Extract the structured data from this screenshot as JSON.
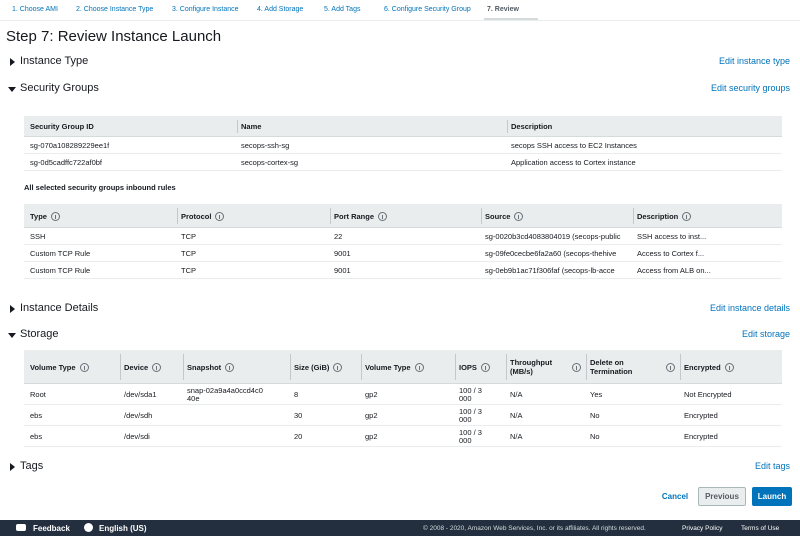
{
  "steps": [
    "1. Choose AMI",
    "2. Choose Instance Type",
    "3. Configure Instance",
    "4. Add Storage",
    "5. Add Tags",
    "6. Configure Security Group",
    "7. Review"
  ],
  "title": "Step 7: Review Instance Launch",
  "sections": {
    "instance_type": {
      "label": "Instance Type",
      "edit": "Edit instance type"
    },
    "security_groups": {
      "label": "Security Groups",
      "edit": "Edit security groups",
      "groups": {
        "headers": [
          "Security Group ID",
          "Name",
          "Description"
        ],
        "rows": [
          [
            "sg-070a108289229ee1f",
            "secops-ssh-sg",
            "secops SSH access to EC2 Instances"
          ],
          [
            "sg-0d5cadffc722af0bf",
            "secops-cortex-sg",
            "Application access to Cortex instance"
          ]
        ]
      },
      "rules_title": "All selected security groups inbound rules",
      "rules": {
        "headers": [
          "Type",
          "Protocol",
          "Port Range",
          "Source",
          "Description"
        ],
        "rows": [
          [
            "SSH",
            "TCP",
            "22",
            "sg-0020b3cd4083804019 (secops-public",
            "SSH access to inst..."
          ],
          [
            "Custom TCP Rule",
            "TCP",
            "9001",
            "sg-09fe0cecbe6fa2a60 (secops-thehive",
            "Access to Cortex f..."
          ],
          [
            "Custom TCP Rule",
            "TCP",
            "9001",
            "sg-0eb9b1ac71f306faf (secops-lb-acce",
            "Access from ALB on..."
          ]
        ]
      }
    },
    "instance_details": {
      "label": "Instance Details",
      "edit": "Edit instance details"
    },
    "storage": {
      "label": "Storage",
      "edit": "Edit storage",
      "volumes": {
        "headers": [
          "Volume Type",
          "Device",
          "Snapshot",
          "Size (GiB)",
          "Volume Type",
          "IOPS",
          "Throughput (MB/s)",
          "Delete on Termination",
          "Encrypted"
        ],
        "rows": [
          [
            "Root",
            "/dev/sda1",
            "snap-02a9a4a0ccd4c040e",
            "8",
            "gp2",
            "100 / 3000",
            "N/A",
            "Yes",
            "Not Encrypted"
          ],
          [
            "ebs",
            "/dev/sdh",
            "",
            "30",
            "gp2",
            "100 / 3000",
            "N/A",
            "No",
            "Encrypted"
          ],
          [
            "ebs",
            "/dev/sdi",
            "",
            "20",
            "gp2",
            "100 / 3000",
            "N/A",
            "No",
            "Encrypted"
          ]
        ]
      }
    },
    "tags": {
      "label": "Tags",
      "edit": "Edit tags"
    }
  },
  "buttons": {
    "cancel": "Cancel",
    "previous": "Previous",
    "launch": "Launch"
  },
  "footer": {
    "feedback": "Feedback",
    "language": "English (US)",
    "copyright": "© 2008 - 2020, Amazon Web Services, Inc. or its affiliates. All rights reserved.",
    "privacy": "Privacy Policy",
    "terms": "Terms of Use"
  }
}
